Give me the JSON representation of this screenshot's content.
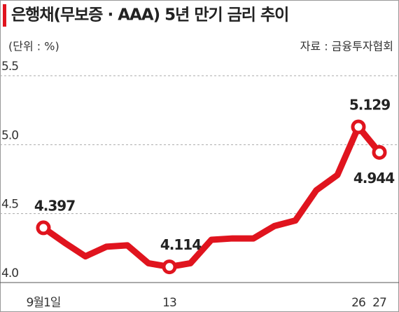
{
  "chart_data": {
    "type": "line",
    "title": "은행채(무보증 · AAA) 5년 만기 금리 추이",
    "subtitle": "(단위 : %)",
    "source": "자료 : 금융투자협회",
    "categories": [
      "9월1일",
      null,
      null,
      null,
      null,
      null,
      "13",
      null,
      null,
      null,
      null,
      null,
      null,
      null,
      null,
      "26",
      "27"
    ],
    "series": [
      {
        "name": "은행채 5년 금리",
        "color": "#e0141e",
        "values": [
          4.397,
          4.29,
          4.19,
          4.26,
          4.27,
          4.14,
          4.114,
          4.14,
          4.31,
          4.32,
          4.32,
          4.41,
          4.45,
          4.67,
          4.78,
          5.129,
          4.944
        ],
        "value_labels": [
          "4.397",
          null,
          null,
          null,
          null,
          null,
          "4.114",
          null,
          null,
          null,
          null,
          null,
          null,
          null,
          null,
          "5.129",
          "4.944"
        ]
      }
    ],
    "ylim": [
      4,
      5.5
    ],
    "yticks": [
      {
        "value": 4,
        "label": "4.0"
      },
      4.5,
      {
        "value": 5,
        "label": "5.0"
      },
      5.5
    ],
    "grid": true
  }
}
